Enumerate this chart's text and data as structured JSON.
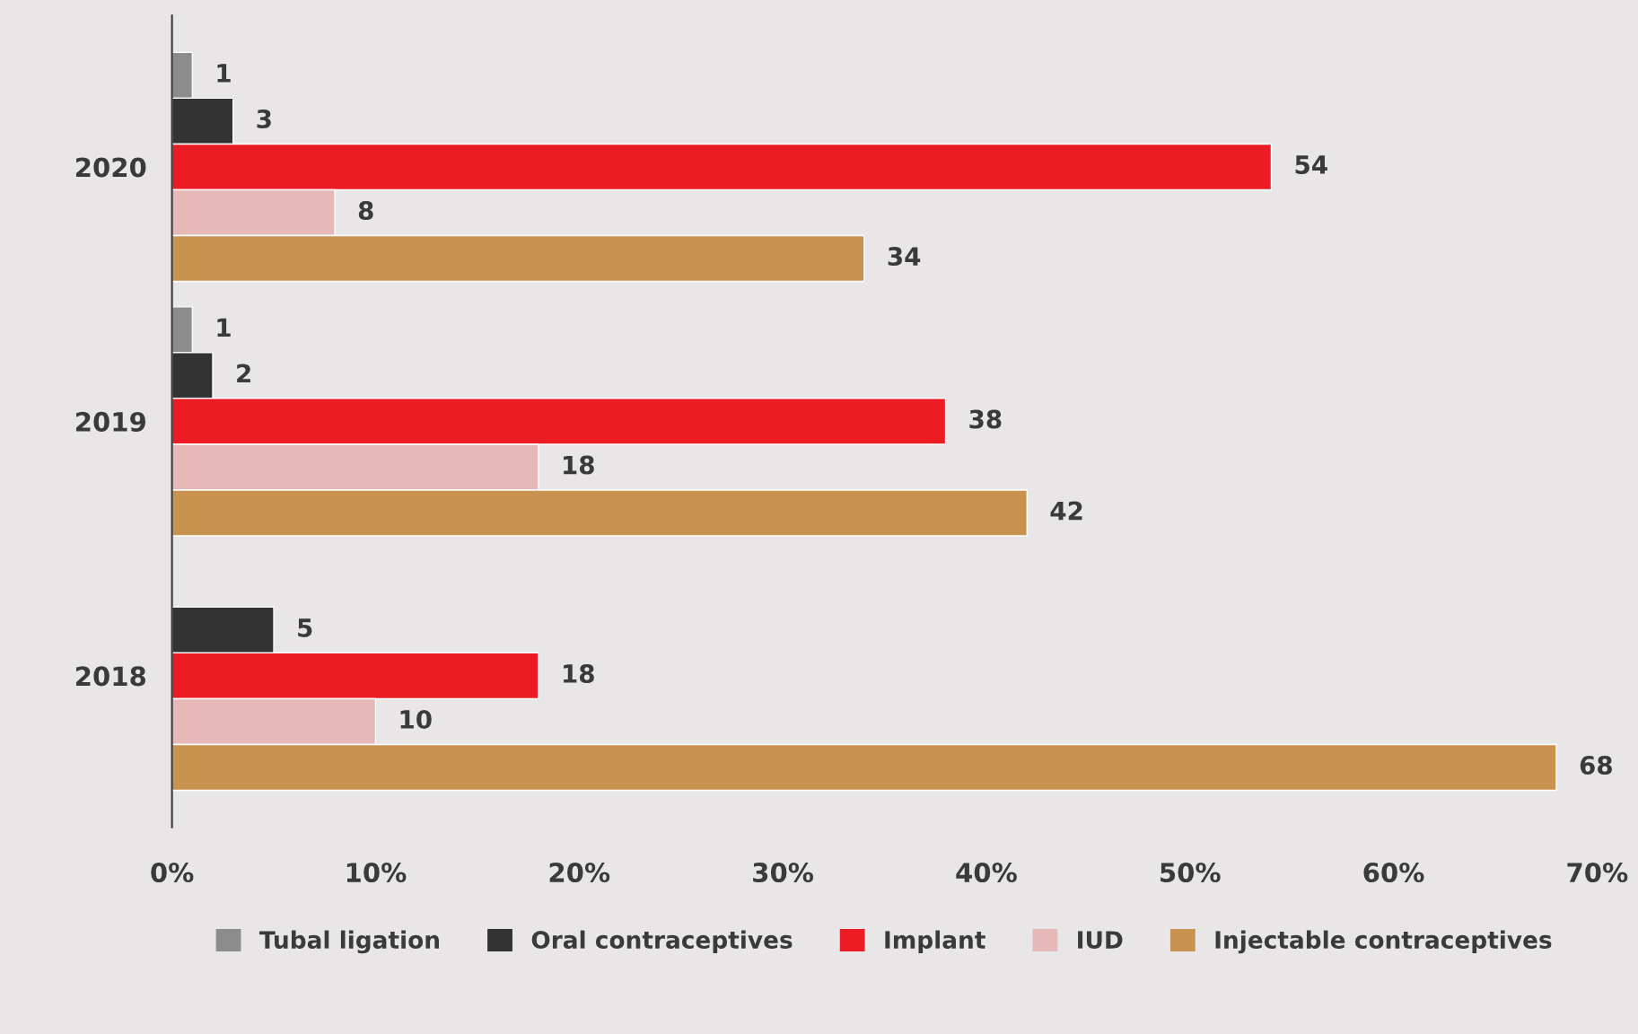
{
  "chart_data": {
    "type": "bar",
    "orientation": "horizontal",
    "categories": [
      "2020",
      "2019",
      "2018"
    ],
    "series": [
      {
        "name": "Tubal ligation",
        "color": "#8c8c8c",
        "values": [
          1,
          1,
          null
        ]
      },
      {
        "name": "Oral contraceptives",
        "color": "#333333",
        "values": [
          3,
          2,
          5
        ]
      },
      {
        "name": "Implant",
        "color": "#ec1c24",
        "values": [
          54,
          38,
          18
        ]
      },
      {
        "name": "IUD",
        "color": "#e6b8b8",
        "values": [
          8,
          18,
          10
        ]
      },
      {
        "name": "Injectable contraceptives",
        "color": "#c8924f",
        "values": [
          34,
          42,
          68
        ]
      }
    ],
    "xlim": [
      0,
      70
    ],
    "xticks": [
      {
        "value": 0,
        "label": "0%"
      },
      {
        "value": 10,
        "label": "10%"
      },
      {
        "value": 20,
        "label": "20%"
      },
      {
        "value": 30,
        "label": "30%"
      },
      {
        "value": 40,
        "label": "40%"
      },
      {
        "value": 50,
        "label": "50%"
      },
      {
        "value": 60,
        "label": "60%"
      },
      {
        "value": 70,
        "label": "70%"
      }
    ],
    "data_labels": true,
    "grid": false,
    "legend": "bottom"
  }
}
